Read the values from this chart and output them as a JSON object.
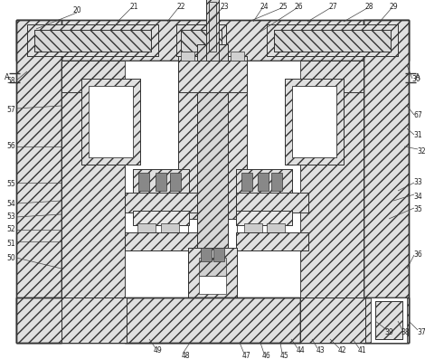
{
  "bg_color": "#ffffff",
  "line_color": "#333333",
  "hatch_lw": 0.4,
  "outer_lw": 1.0,
  "inner_lw": 0.6,
  "figsize": [
    4.7,
    3.97
  ],
  "dpi": 100
}
